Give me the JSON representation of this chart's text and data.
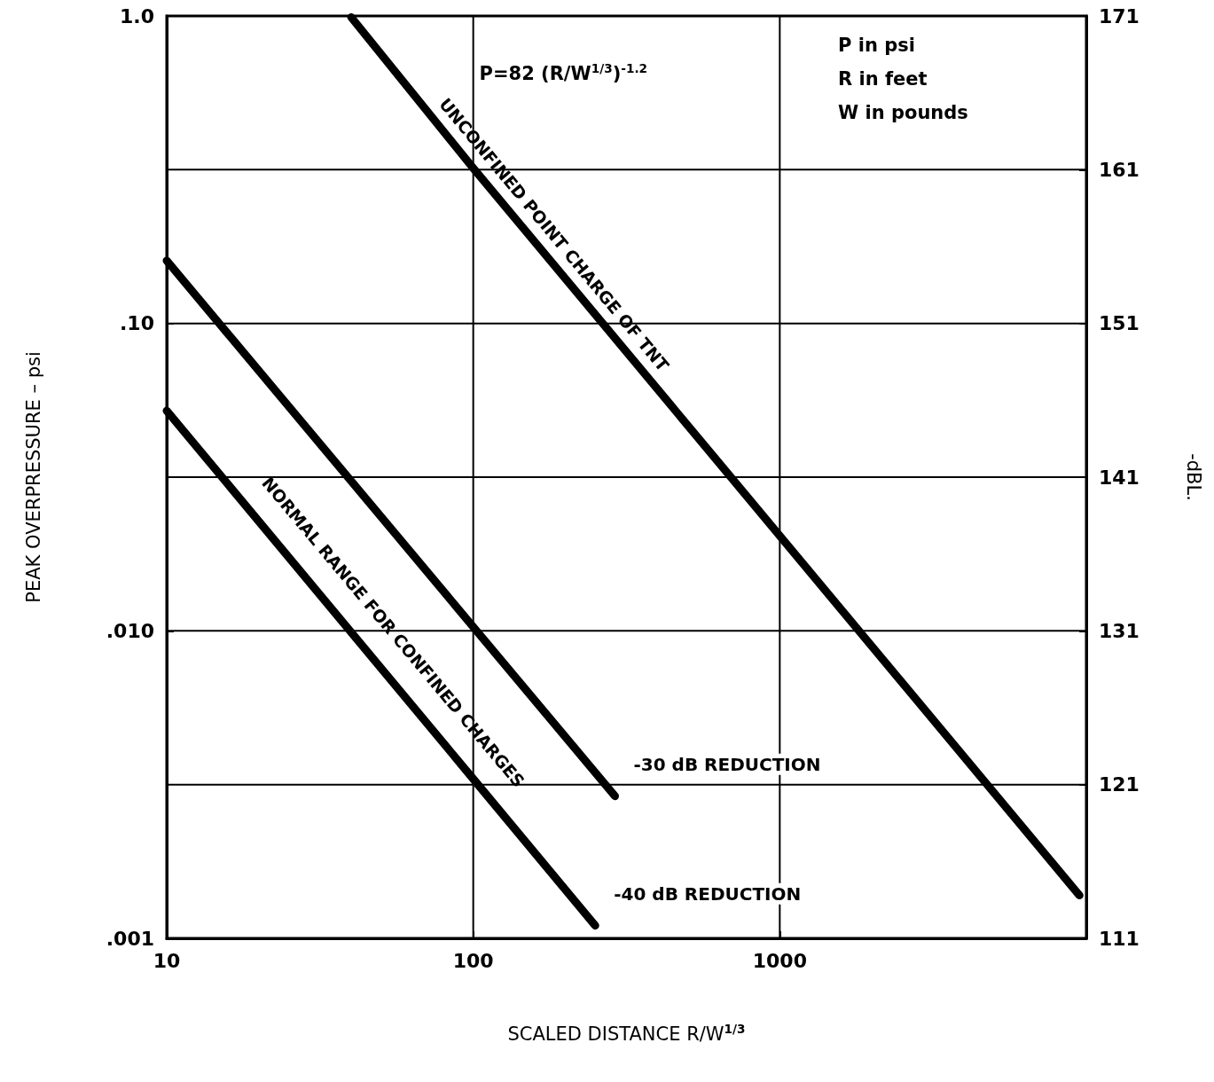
{
  "chart_data": {
    "type": "line",
    "xlabel": "SCALED DISTANCE R/W$^{1/3}$",
    "ylabel": "PEAK OVERPRESSURE – psi",
    "y2label": "-dBL.",
    "annotations": [
      "P=82 (R/W$^{1/3}$)$^{-1.2}$",
      "P in psi",
      "R in feet",
      "W in pounds",
      "NORMAL RANGE FOR CONFINED CHARGES"
    ],
    "series": [
      {
        "name": "UNCONFINED POINT CHARGE OF TNT",
        "color": "#000000",
        "x": [
          40,
          100,
          9500
        ],
        "values": [
          0.99,
          0.32,
          0.00138
        ]
      },
      {
        "name": "-30 dB REDUCTION",
        "color": "#000000",
        "x": [
          10,
          100,
          290
        ],
        "values": [
          0.16,
          0.0103,
          0.0029
        ]
      },
      {
        "name": "-40 dB REDUCTION",
        "color": "#000000",
        "x": [
          10,
          100,
          250
        ],
        "values": [
          0.052,
          0.0033,
          0.0011
        ]
      }
    ],
    "log": "xy",
    "xlim": [
      10,
      10000
    ],
    "xticks": [
      10,
      100,
      1000
    ],
    "ylim": [
      0.001,
      1
    ],
    "yticks": [
      {
        "value": 0.001,
        "label": ".001"
      },
      {
        "value": 0.01,
        "label": ".010"
      },
      {
        "value": 0.1,
        "label": ".10"
      },
      {
        "value": 1,
        "label": "1.0"
      }
    ],
    "y2lim": [
      111,
      171
    ],
    "y2ticks": [
      111,
      121,
      131,
      141,
      151,
      161,
      171
    ],
    "grid": true,
    "line_style": "solid"
  }
}
